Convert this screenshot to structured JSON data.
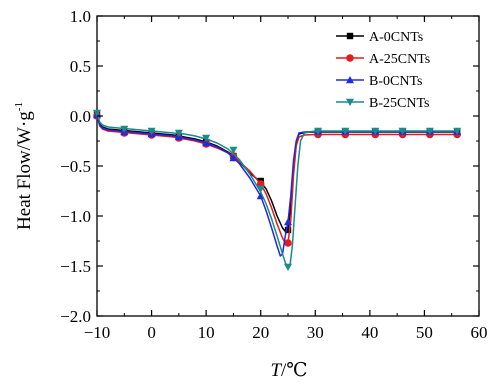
{
  "chart_data": {
    "type": "line",
    "title": "",
    "xlabel": {
      "main": "T",
      "unit": "/℃"
    },
    "ylabel": {
      "main": "Heat Flow/W·g",
      "sup": "-1"
    },
    "xlim": [
      -10,
      60
    ],
    "ylim": [
      -2.0,
      1.0
    ],
    "xticks": [
      -10,
      0,
      10,
      20,
      30,
      40,
      50,
      60
    ],
    "xtick_labels": [
      "−10",
      "0",
      "10",
      "20",
      "30",
      "40",
      "50",
      "60"
    ],
    "yticks": [
      -2.0,
      -1.5,
      -1.0,
      -0.5,
      0.0,
      0.5,
      1.0
    ],
    "ytick_labels": [
      "−2.0",
      "−1.5",
      "−1.0",
      "−0.5",
      "0.0",
      "0.5",
      "1.0"
    ],
    "grid": false,
    "legend_position": "top-right",
    "series": [
      {
        "name": "A-0CNTs",
        "color": "#000000",
        "marker": "square",
        "line": [
          [
            -10,
            0.02
          ],
          [
            -9.5,
            -0.08
          ],
          [
            -9,
            -0.11
          ],
          [
            -8,
            -0.13
          ],
          [
            -6,
            -0.14
          ],
          [
            -4,
            -0.15
          ],
          [
            -2,
            -0.16
          ],
          [
            0,
            -0.17
          ],
          [
            2,
            -0.18
          ],
          [
            4,
            -0.19
          ],
          [
            6,
            -0.21
          ],
          [
            8,
            -0.23
          ],
          [
            10,
            -0.26
          ],
          [
            12,
            -0.3
          ],
          [
            14,
            -0.36
          ],
          [
            16,
            -0.45
          ],
          [
            18,
            -0.57
          ],
          [
            20,
            -0.66
          ],
          [
            21,
            -0.73
          ],
          [
            22,
            -0.85
          ],
          [
            23,
            -1.0
          ],
          [
            24,
            -1.12
          ],
          [
            24.6,
            -1.16
          ],
          [
            25,
            -1.14
          ],
          [
            25.4,
            -0.95
          ],
          [
            25.9,
            -0.6
          ],
          [
            26.4,
            -0.3
          ],
          [
            27,
            -0.18
          ],
          [
            28,
            -0.165
          ],
          [
            30,
            -0.16
          ],
          [
            35,
            -0.16
          ],
          [
            40,
            -0.16
          ],
          [
            45,
            -0.16
          ],
          [
            50,
            -0.16
          ],
          [
            56,
            -0.16
          ]
        ],
        "points": [
          [
            -10,
            0.02
          ],
          [
            -5,
            -0.15
          ],
          [
            0,
            -0.17
          ],
          [
            5,
            -0.2
          ],
          [
            10,
            -0.26
          ],
          [
            15,
            -0.4
          ],
          [
            20,
            -0.65
          ],
          [
            25,
            -1.14
          ],
          [
            30.5,
            -0.16
          ],
          [
            35.5,
            -0.16
          ],
          [
            41,
            -0.16
          ],
          [
            46,
            -0.16
          ],
          [
            51,
            -0.16
          ],
          [
            56,
            -0.16
          ]
        ]
      },
      {
        "name": "A-25CNTs",
        "color": "#e41a1c",
        "marker": "circle",
        "line": [
          [
            -10,
            0.0
          ],
          [
            -9.5,
            -0.1
          ],
          [
            -9,
            -0.13
          ],
          [
            -8,
            -0.15
          ],
          [
            -6,
            -0.16
          ],
          [
            -4,
            -0.17
          ],
          [
            -2,
            -0.18
          ],
          [
            0,
            -0.19
          ],
          [
            2,
            -0.2
          ],
          [
            4,
            -0.21
          ],
          [
            6,
            -0.23
          ],
          [
            8,
            -0.25
          ],
          [
            10,
            -0.28
          ],
          [
            12,
            -0.32
          ],
          [
            14,
            -0.37
          ],
          [
            16,
            -0.45
          ],
          [
            18,
            -0.55
          ],
          [
            20,
            -0.68
          ],
          [
            21,
            -0.78
          ],
          [
            22,
            -0.92
          ],
          [
            23,
            -1.08
          ],
          [
            24,
            -1.22
          ],
          [
            24.6,
            -1.28
          ],
          [
            25,
            -1.27
          ],
          [
            25.5,
            -1.05
          ],
          [
            26,
            -0.6
          ],
          [
            26.5,
            -0.3
          ],
          [
            27,
            -0.21
          ],
          [
            28,
            -0.19
          ],
          [
            30,
            -0.185
          ],
          [
            35,
            -0.185
          ],
          [
            40,
            -0.185
          ],
          [
            45,
            -0.185
          ],
          [
            50,
            -0.185
          ],
          [
            56,
            -0.185
          ]
        ],
        "points": [
          [
            -10,
            0.0
          ],
          [
            -5,
            -0.17
          ],
          [
            0,
            -0.19
          ],
          [
            5,
            -0.22
          ],
          [
            10,
            -0.28
          ],
          [
            15,
            -0.4
          ],
          [
            20,
            -0.68
          ],
          [
            25,
            -1.27
          ],
          [
            30.5,
            -0.185
          ],
          [
            35.5,
            -0.185
          ],
          [
            41,
            -0.185
          ],
          [
            46,
            -0.185
          ],
          [
            51,
            -0.185
          ],
          [
            56,
            -0.185
          ]
        ]
      },
      {
        "name": "B-0CNTs",
        "color": "#1f2be0",
        "marker": "triangle-up",
        "line": [
          [
            -10,
            0.01
          ],
          [
            -9.5,
            -0.09
          ],
          [
            -9,
            -0.12
          ],
          [
            -8,
            -0.14
          ],
          [
            -6,
            -0.15
          ],
          [
            -4,
            -0.16
          ],
          [
            -2,
            -0.17
          ],
          [
            0,
            -0.18
          ],
          [
            2,
            -0.19
          ],
          [
            4,
            -0.2
          ],
          [
            6,
            -0.22
          ],
          [
            8,
            -0.24
          ],
          [
            10,
            -0.27
          ],
          [
            12,
            -0.31
          ],
          [
            14,
            -0.37
          ],
          [
            16,
            -0.47
          ],
          [
            18,
            -0.62
          ],
          [
            20,
            -0.8
          ],
          [
            21,
            -0.95
          ],
          [
            22,
            -1.12
          ],
          [
            23,
            -1.3
          ],
          [
            23.6,
            -1.4
          ],
          [
            24,
            -1.38
          ],
          [
            24.5,
            -1.2
          ],
          [
            25,
            -1.06
          ],
          [
            25.5,
            -0.8
          ],
          [
            26,
            -0.45
          ],
          [
            26.5,
            -0.25
          ],
          [
            27,
            -0.17
          ],
          [
            28,
            -0.16
          ],
          [
            30,
            -0.155
          ],
          [
            35,
            -0.155
          ],
          [
            40,
            -0.155
          ],
          [
            45,
            -0.155
          ],
          [
            50,
            -0.155
          ],
          [
            56,
            -0.155
          ]
        ],
        "points": [
          [
            -10,
            0.01
          ],
          [
            -5,
            -0.16
          ],
          [
            0,
            -0.18
          ],
          [
            5,
            -0.21
          ],
          [
            10,
            -0.27
          ],
          [
            15,
            -0.42
          ],
          [
            20,
            -0.8
          ],
          [
            25,
            -1.06
          ],
          [
            30.5,
            -0.155
          ],
          [
            35.5,
            -0.155
          ],
          [
            41,
            -0.155
          ],
          [
            46,
            -0.155
          ],
          [
            51,
            -0.155
          ],
          [
            56,
            -0.155
          ]
        ]
      },
      {
        "name": "B-25CNTs",
        "color": "#1a8a8a",
        "marker": "triangle-down",
        "line": [
          [
            -10,
            0.03
          ],
          [
            -9.5,
            -0.06
          ],
          [
            -9,
            -0.09
          ],
          [
            -8,
            -0.11
          ],
          [
            -6,
            -0.12
          ],
          [
            -4,
            -0.13
          ],
          [
            -2,
            -0.14
          ],
          [
            0,
            -0.15
          ],
          [
            2,
            -0.16
          ],
          [
            4,
            -0.17
          ],
          [
            6,
            -0.18
          ],
          [
            8,
            -0.2
          ],
          [
            10,
            -0.23
          ],
          [
            12,
            -0.27
          ],
          [
            14,
            -0.33
          ],
          [
            16,
            -0.43
          ],
          [
            18,
            -0.58
          ],
          [
            20,
            -0.76
          ],
          [
            21,
            -0.88
          ],
          [
            22,
            -1.03
          ],
          [
            23,
            -1.2
          ],
          [
            24,
            -1.38
          ],
          [
            24.6,
            -1.48
          ],
          [
            25,
            -1.51
          ],
          [
            25.4,
            -1.48
          ],
          [
            25.8,
            -1.3
          ],
          [
            26.3,
            -0.9
          ],
          [
            26.8,
            -0.5
          ],
          [
            27.3,
            -0.25
          ],
          [
            28,
            -0.17
          ],
          [
            30,
            -0.15
          ],
          [
            35,
            -0.15
          ],
          [
            40,
            -0.15
          ],
          [
            45,
            -0.15
          ],
          [
            50,
            -0.15
          ],
          [
            56,
            -0.15
          ]
        ],
        "points": [
          [
            -10,
            0.03
          ],
          [
            -5,
            -0.13
          ],
          [
            0,
            -0.15
          ],
          [
            5,
            -0.17
          ],
          [
            10,
            -0.22
          ],
          [
            15,
            -0.34
          ],
          [
            20,
            -0.73
          ],
          [
            25,
            -1.51
          ],
          [
            30.5,
            -0.15
          ],
          [
            35.5,
            -0.15
          ],
          [
            41,
            -0.15
          ],
          [
            46,
            -0.15
          ],
          [
            51,
            -0.15
          ],
          [
            56,
            -0.15
          ]
        ]
      }
    ]
  }
}
